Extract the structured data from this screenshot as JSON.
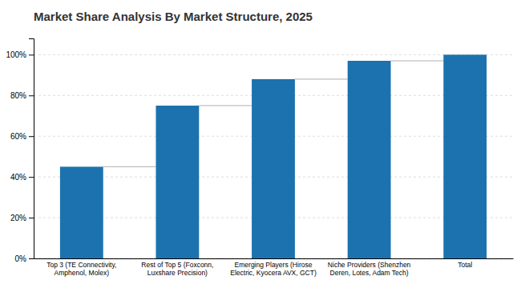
{
  "chart_data": {
    "type": "bar",
    "title": "Market Share Analysis By Market Structure, 2025",
    "categories": [
      "Top 3 (TE Connectivity,\nAmphenol, Molex)",
      "Rest of Top 5 (Foxconn,\nLuxshare Precision)",
      "Emerging Players (Hirose\nElectric, Kyocera AVX, GCT)",
      "Niche Providers (Shenzhen\nDeren, Lotes, Adam Tech)",
      "Total"
    ],
    "values": [
      45,
      75,
      88,
      97,
      100
    ],
    "color": "#1B72AE",
    "ylim": [
      0,
      108
    ],
    "yticks": [
      {
        "value": 0,
        "label": "0%"
      },
      {
        "value": 20,
        "label": "20%"
      },
      {
        "value": 40,
        "label": "40%"
      },
      {
        "value": 60,
        "label": "60%"
      },
      {
        "value": 80,
        "label": "80%"
      },
      {
        "value": 100,
        "label": "100%"
      }
    ],
    "grid": true
  }
}
